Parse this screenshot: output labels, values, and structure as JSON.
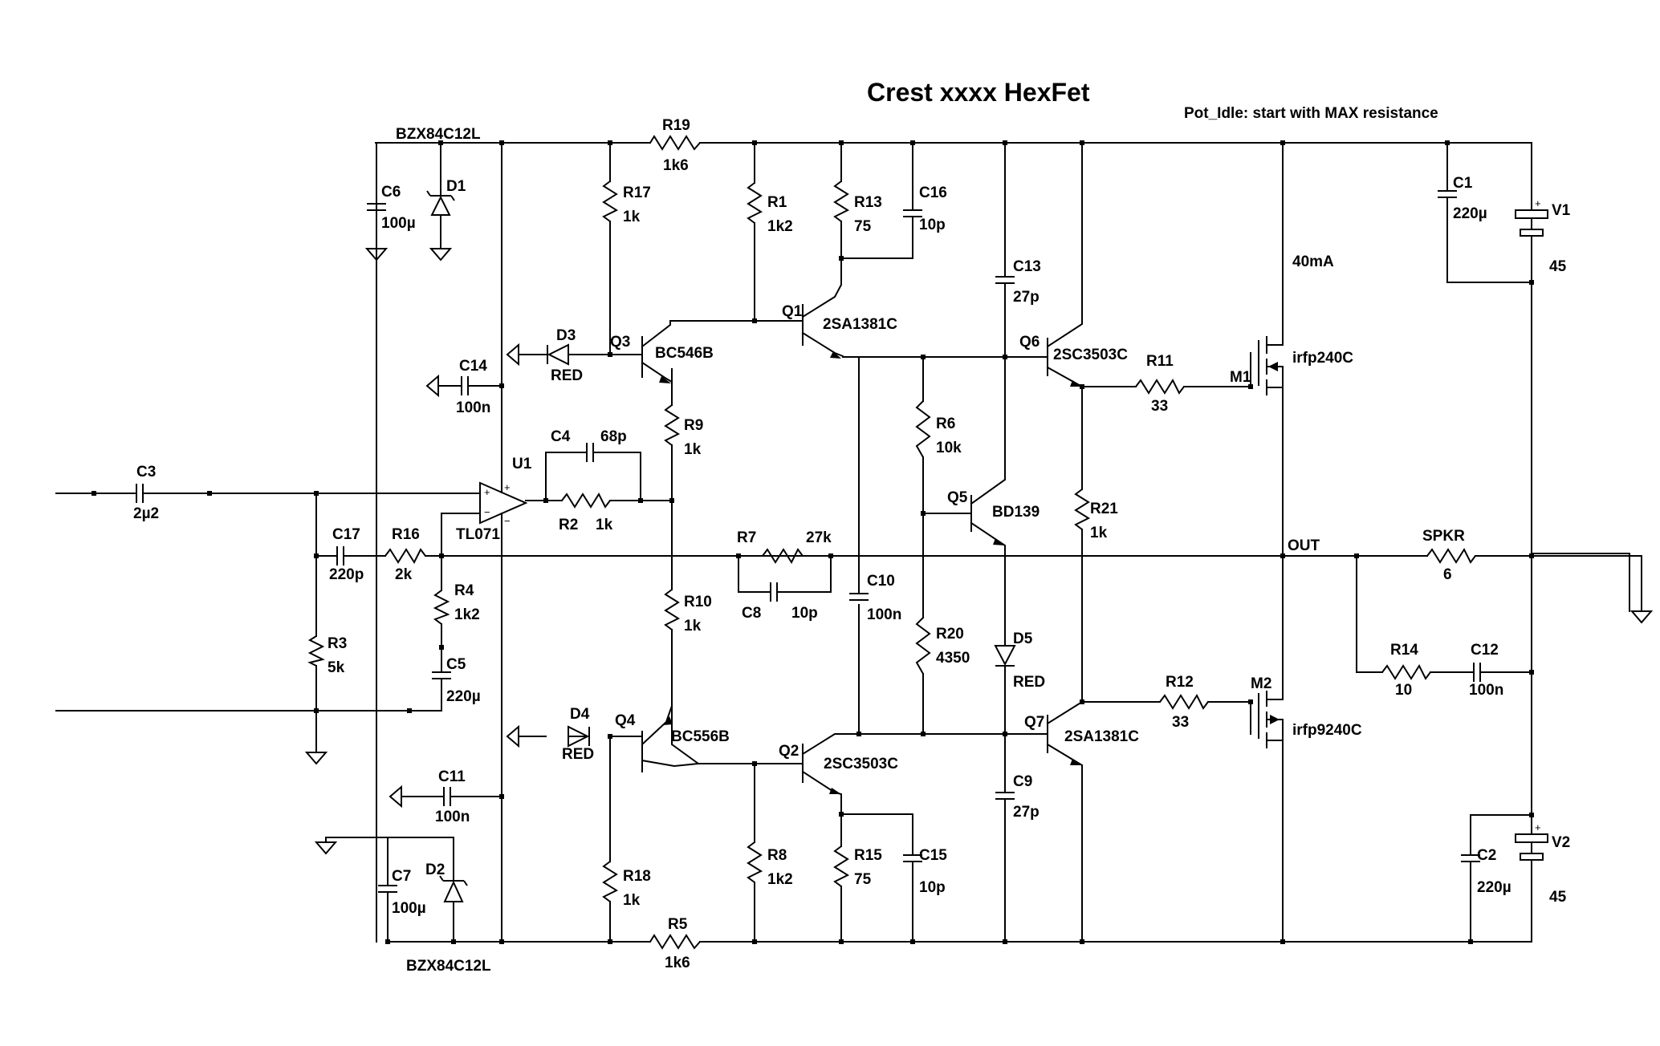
{
  "title": "Crest xxxx HexFet",
  "note": "Pot_Idle: start with MAX resistance",
  "idle_current": "40mA",
  "out_label": "OUT",
  "components": {
    "C1": {
      "ref": "C1",
      "value": "220µ"
    },
    "C2": {
      "ref": "C2",
      "value": "220µ"
    },
    "C3": {
      "ref": "C3",
      "value": "2µ2"
    },
    "C4": {
      "ref": "C4",
      "value": "68p"
    },
    "C5": {
      "ref": "C5",
      "value": "220µ"
    },
    "C6": {
      "ref": "C6",
      "value": "100µ"
    },
    "C7": {
      "ref": "C7",
      "value": "100µ"
    },
    "C8": {
      "ref": "C8",
      "value": "10p"
    },
    "C9": {
      "ref": "C9",
      "value": "27p"
    },
    "C10": {
      "ref": "C10",
      "value": "100n"
    },
    "C11": {
      "ref": "C11",
      "value": "100n"
    },
    "C12": {
      "ref": "C12",
      "value": "100n"
    },
    "C13": {
      "ref": "C13",
      "value": "27p"
    },
    "C14": {
      "ref": "C14",
      "value": "100n"
    },
    "C15": {
      "ref": "C15",
      "value": "10p"
    },
    "C16": {
      "ref": "C16",
      "value": "10p"
    },
    "C17": {
      "ref": "C17",
      "value": "220p"
    },
    "R1": {
      "ref": "R1",
      "value": "1k2"
    },
    "R2": {
      "ref": "R2",
      "value": "1k"
    },
    "R3": {
      "ref": "R3",
      "value": "5k"
    },
    "R4": {
      "ref": "R4",
      "value": "1k2"
    },
    "R5": {
      "ref": "R5",
      "value": "1k6"
    },
    "R6": {
      "ref": "R6",
      "value": "10k"
    },
    "R7": {
      "ref": "R7",
      "value": "27k"
    },
    "R8": {
      "ref": "R8",
      "value": "1k2"
    },
    "R9": {
      "ref": "R9",
      "value": "1k"
    },
    "R10": {
      "ref": "R10",
      "value": "1k"
    },
    "R11": {
      "ref": "R11",
      "value": "33"
    },
    "R12": {
      "ref": "R12",
      "value": "33"
    },
    "R13": {
      "ref": "R13",
      "value": "75"
    },
    "R14": {
      "ref": "R14",
      "value": "10"
    },
    "R15": {
      "ref": "R15",
      "value": "75"
    },
    "R16": {
      "ref": "R16",
      "value": "2k"
    },
    "R17": {
      "ref": "R17",
      "value": "1k"
    },
    "R18": {
      "ref": "R18",
      "value": "1k"
    },
    "R19": {
      "ref": "R19",
      "value": "1k6"
    },
    "R20": {
      "ref": "R20",
      "value": "4350"
    },
    "R21": {
      "ref": "R21",
      "value": "1k"
    },
    "SPKR": {
      "ref": "SPKR",
      "value": "6"
    },
    "D1": {
      "ref": "D1",
      "value": "BZX84C12L"
    },
    "D2": {
      "ref": "D2",
      "value": "BZX84C12L"
    },
    "D3": {
      "ref": "D3",
      "value": "RED"
    },
    "D4": {
      "ref": "D4",
      "value": "RED"
    },
    "D5": {
      "ref": "D5",
      "value": "RED"
    },
    "Q1": {
      "ref": "Q1",
      "value": "2SA1381C"
    },
    "Q2": {
      "ref": "Q2",
      "value": "2SC3503C"
    },
    "Q3": {
      "ref": "Q3",
      "value": "BC546B"
    },
    "Q4": {
      "ref": "Q4",
      "value": "BC556B"
    },
    "Q5": {
      "ref": "Q5",
      "value": "BD139"
    },
    "Q6": {
      "ref": "Q6",
      "value": "2SC3503C"
    },
    "Q7": {
      "ref": "Q7",
      "value": "2SA1381C"
    },
    "M1": {
      "ref": "M1",
      "value": "irfp240C"
    },
    "M2": {
      "ref": "M2",
      "value": "irfp9240C"
    },
    "U1": {
      "ref": "U1",
      "value": "TL071"
    },
    "V1": {
      "ref": "V1",
      "value": "45"
    },
    "V2": {
      "ref": "V2",
      "value": "45"
    }
  }
}
